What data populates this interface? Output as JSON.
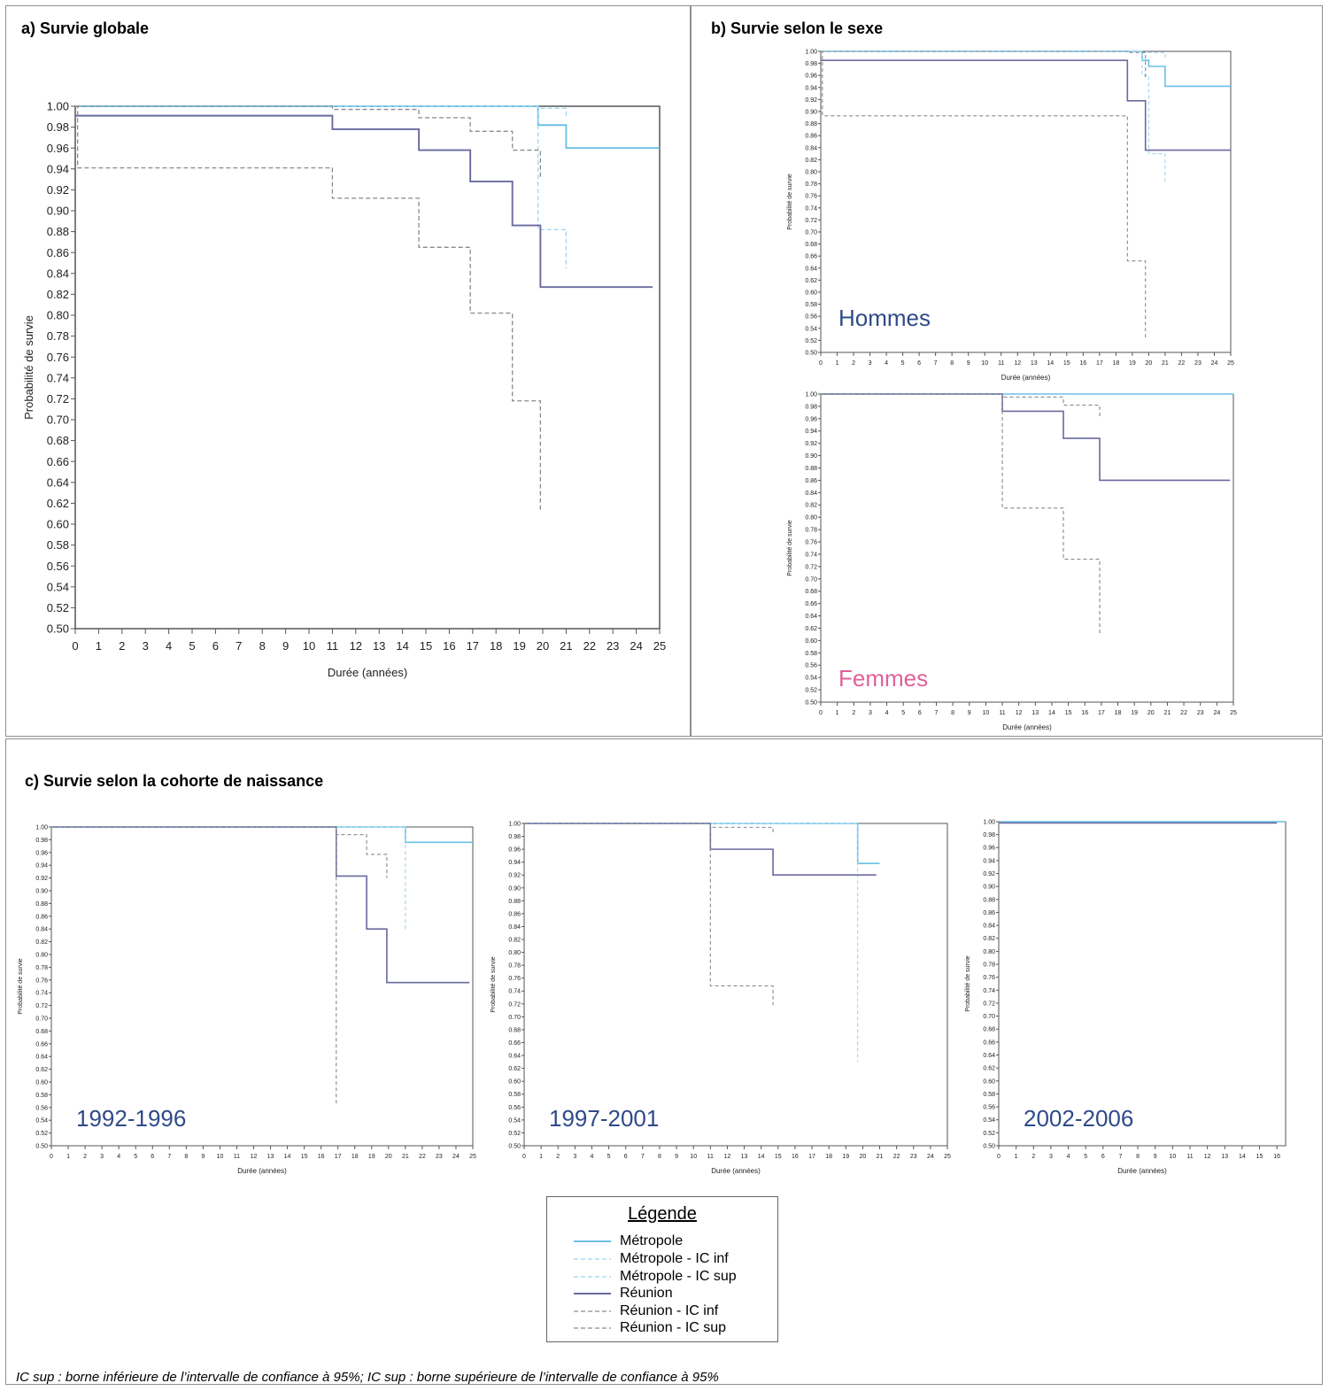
{
  "panels": {
    "a_title": "a) Survie globale",
    "b_title": "b) Survie selon le sexe",
    "c_title": "c) Survie selon la cohorte de naissance"
  },
  "legend": {
    "title": "Légende",
    "items": [
      {
        "label": "Métropole",
        "color": "#6bbfe6",
        "style": "solid"
      },
      {
        "label": "Métropole - IC inf",
        "color": "#9fd4ef",
        "style": "dashed"
      },
      {
        "label": "Métropole - IC sup",
        "color": "#9fd4ef",
        "style": "dashed"
      },
      {
        "label": "Réunion",
        "color": "#6a6aa0",
        "style": "solid"
      },
      {
        "label": "Réunion - IC inf",
        "color": "#8a8a8a",
        "style": "dashed"
      },
      {
        "label": "Réunion - IC sup",
        "color": "#8a8a8a",
        "style": "dashed"
      }
    ]
  },
  "footnote": "IC sup : borne inférieure de l’intervalle de confiance à 95%; IC sup : borne supérieure de l’intervalle de confiance à 95%",
  "chart_data": [
    {
      "id": "a",
      "type": "line",
      "step": true,
      "xlabel": "Durée (années)",
      "ylabel": "Probabilité de survie",
      "inset_label": "",
      "xlim": [
        0,
        25
      ],
      "ylim": [
        0.5,
        1.0
      ],
      "xticks": [
        0,
        1,
        2,
        3,
        4,
        5,
        6,
        7,
        8,
        9,
        10,
        11,
        12,
        13,
        14,
        15,
        16,
        17,
        18,
        19,
        20,
        21,
        22,
        23,
        24,
        25
      ],
      "series": [
        {
          "name": "Métropole",
          "x": [
            0,
            19.8,
            21,
            25
          ],
          "y": [
            1.0,
            0.982,
            0.96,
            0.96
          ]
        },
        {
          "name": "Métropole - IC inf",
          "x": [
            0,
            19.8,
            21,
            21
          ],
          "y": [
            1.0,
            0.882,
            0.882,
            0.845
          ]
        },
        {
          "name": "Métropole - IC sup",
          "x": [
            0,
            19.8,
            21,
            21
          ],
          "y": [
            1.0,
            0.998,
            0.998,
            0.99
          ]
        },
        {
          "name": "Réunion",
          "x": [
            0,
            11,
            14.7,
            16.9,
            18.7,
            19.9,
            24.7
          ],
          "y": [
            0.991,
            0.978,
            0.958,
            0.928,
            0.886,
            0.827,
            0.827
          ]
        },
        {
          "name": "Réunion - IC inf",
          "x": [
            0,
            0.1,
            11,
            14.7,
            16.9,
            18.7,
            19.9,
            19.9
          ],
          "y": [
            1.0,
            0.941,
            0.912,
            0.865,
            0.802,
            0.718,
            0.718,
            0.612
          ]
        },
        {
          "name": "Réunion - IC sup",
          "x": [
            0,
            11,
            14.7,
            16.9,
            18.7,
            19.9,
            19.9
          ],
          "y": [
            1.0,
            0.997,
            0.989,
            0.976,
            0.958,
            0.955,
            0.93
          ]
        }
      ]
    },
    {
      "id": "b1",
      "type": "line",
      "step": true,
      "xlabel": "Durée (années)",
      "ylabel": "Probabilité de survie",
      "inset_label": "Hommes",
      "inset_color": "#2f4a8a",
      "xlim": [
        0,
        25
      ],
      "ylim": [
        0.5,
        1.0
      ],
      "xticks": [
        0,
        1,
        2,
        3,
        4,
        5,
        6,
        7,
        8,
        9,
        10,
        11,
        12,
        13,
        14,
        15,
        16,
        17,
        18,
        19,
        20,
        21,
        22,
        23,
        24,
        25
      ],
      "series": [
        {
          "name": "Métropole",
          "x": [
            0,
            19.6,
            20,
            21,
            25
          ],
          "y": [
            1.0,
            0.985,
            0.975,
            0.942,
            0.942
          ]
        },
        {
          "name": "Métropole - IC inf",
          "x": [
            0,
            19.6,
            20,
            21,
            21
          ],
          "y": [
            1.0,
            0.96,
            0.83,
            0.83,
            0.78
          ]
        },
        {
          "name": "Métropole - IC sup",
          "x": [
            0,
            19.6,
            21,
            21
          ],
          "y": [
            1.0,
            0.998,
            0.998,
            0.985
          ]
        },
        {
          "name": "Réunion",
          "x": [
            0,
            18.7,
            19.8,
            25
          ],
          "y": [
            0.985,
            0.918,
            0.836,
            0.836
          ]
        },
        {
          "name": "Réunion - IC inf",
          "x": [
            0,
            0.1,
            18.7,
            19.8,
            19.8
          ],
          "y": [
            1.0,
            0.893,
            0.652,
            0.652,
            0.521
          ]
        },
        {
          "name": "Réunion - IC sup",
          "x": [
            0,
            18.7,
            19.8,
            19.8
          ],
          "y": [
            1.0,
            0.998,
            0.992,
            0.955
          ]
        }
      ]
    },
    {
      "id": "b2",
      "type": "line",
      "step": true,
      "xlabel": "Durée (années)",
      "ylabel": "Probabilité de survie",
      "inset_label": "Femmes",
      "inset_color": "#e0609a",
      "xlim": [
        0,
        25
      ],
      "ylim": [
        0.5,
        1.0
      ],
      "xticks": [
        0,
        1,
        2,
        3,
        4,
        5,
        6,
        7,
        8,
        9,
        10,
        11,
        12,
        13,
        14,
        15,
        16,
        17,
        18,
        19,
        20,
        21,
        22,
        23,
        24,
        25
      ],
      "series": [
        {
          "name": "Métropole",
          "x": [
            0,
            25
          ],
          "y": [
            1.0,
            1.0
          ]
        },
        {
          "name": "Réunion",
          "x": [
            0,
            11,
            14.7,
            16.9,
            24.8
          ],
          "y": [
            1.0,
            0.972,
            0.928,
            0.86,
            0.86
          ]
        },
        {
          "name": "Réunion - IC inf",
          "x": [
            0,
            11,
            14.7,
            16.9,
            16.9
          ],
          "y": [
            1.0,
            0.815,
            0.732,
            0.732,
            0.61
          ]
        },
        {
          "name": "Réunion - IC sup",
          "x": [
            0,
            11,
            14.7,
            16.9,
            16.9
          ],
          "y": [
            1.0,
            0.995,
            0.982,
            0.982,
            0.96
          ]
        }
      ]
    },
    {
      "id": "c1",
      "type": "line",
      "step": true,
      "xlabel": "Durée (années)",
      "ylabel": "Probabilité de survie",
      "inset_label": "1992-1996",
      "inset_color": "#2f4a8a",
      "xlim": [
        0,
        25
      ],
      "ylim": [
        0.5,
        1.0
      ],
      "xticks": [
        0,
        1,
        2,
        3,
        4,
        5,
        6,
        7,
        8,
        9,
        10,
        11,
        12,
        13,
        14,
        15,
        16,
        17,
        18,
        19,
        20,
        21,
        22,
        23,
        24,
        25
      ],
      "series": [
        {
          "name": "Métropole",
          "x": [
            0,
            21,
            25
          ],
          "y": [
            1.0,
            0.976,
            0.976
          ]
        },
        {
          "name": "Métropole - IC inf",
          "x": [
            0,
            21,
            21
          ],
          "y": [
            1.0,
            1.0,
            0.84
          ]
        },
        {
          "name": "Réunion",
          "x": [
            0,
            16.9,
            18.7,
            19.9,
            24.8
          ],
          "y": [
            1.0,
            0.923,
            0.84,
            0.756,
            0.756
          ]
        },
        {
          "name": "Réunion - IC inf",
          "x": [
            0,
            16.9,
            16.9
          ],
          "y": [
            1.0,
            1.0,
            0.565
          ]
        },
        {
          "name": "Réunion - IC sup",
          "x": [
            0,
            16.9,
            18.7,
            19.9,
            19.9
          ],
          "y": [
            1.0,
            0.988,
            0.957,
            0.957,
            0.92
          ]
        }
      ]
    },
    {
      "id": "c2",
      "type": "line",
      "step": true,
      "xlabel": "Durée (années)",
      "ylabel": "Probabilité de survie",
      "inset_label": "1997-2001",
      "inset_color": "#2f4a8a",
      "xlim": [
        0,
        25
      ],
      "ylim": [
        0.5,
        1.0
      ],
      "xticks": [
        0,
        1,
        2,
        3,
        4,
        5,
        6,
        7,
        8,
        9,
        10,
        11,
        12,
        13,
        14,
        15,
        16,
        17,
        18,
        19,
        20,
        21,
        22,
        23,
        24,
        25
      ],
      "series": [
        {
          "name": "Métropole",
          "x": [
            0,
            19.7,
            21
          ],
          "y": [
            1.0,
            0.938,
            0.938
          ]
        },
        {
          "name": "Métropole - IC inf",
          "x": [
            0,
            19.7,
            19.7
          ],
          "y": [
            1.0,
            1.0,
            0.63
          ]
        },
        {
          "name": "Réunion",
          "x": [
            0,
            11,
            14.7,
            20.8
          ],
          "y": [
            1.0,
            0.96,
            0.92,
            0.92
          ]
        },
        {
          "name": "Réunion - IC inf",
          "x": [
            0,
            11,
            14.7,
            14.7
          ],
          "y": [
            1.0,
            0.748,
            0.748,
            0.718
          ]
        },
        {
          "name": "Réunion - IC sup",
          "x": [
            0,
            11,
            14.7,
            14.7
          ],
          "y": [
            1.0,
            0.994,
            0.994,
            0.985
          ]
        }
      ]
    },
    {
      "id": "c3",
      "type": "line",
      "step": true,
      "xlabel": "Durée (années)",
      "ylabel": "Probabilité de survie",
      "inset_label": "2002-2006",
      "inset_color": "#2f4a8a",
      "xlim": [
        0,
        16.5
      ],
      "ylim": [
        0.5,
        1.0
      ],
      "xticks": [
        0,
        1,
        2,
        3,
        4,
        5,
        6,
        7,
        8,
        9,
        10,
        11,
        12,
        13,
        14,
        15,
        16
      ],
      "series": [
        {
          "name": "Métropole",
          "x": [
            0,
            16.5
          ],
          "y": [
            1.0,
            1.0
          ]
        },
        {
          "name": "Réunion",
          "x": [
            0,
            16
          ],
          "y": [
            0.998,
            0.998
          ]
        }
      ]
    }
  ]
}
